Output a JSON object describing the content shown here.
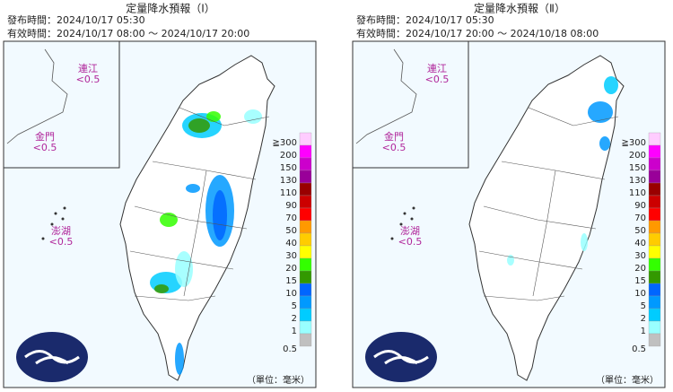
{
  "panels": [
    {
      "title": "定量降水預報（Ⅰ）",
      "issued": "發布時間：2024/10/17 05:30",
      "valid": "有效時間：2024/10/17 08:00 ～ 2024/10/17 20:00",
      "regions": [
        {
          "name": "連江",
          "value": "<0.5"
        },
        {
          "name": "金門",
          "value": "<0.5"
        },
        {
          "name": "澎湖",
          "value": "<0.5"
        }
      ]
    },
    {
      "title": "定量降水預報（Ⅱ）",
      "issued": "發布時間：2024/10/17 05:30",
      "valid": "有效時間：2024/10/17 20:00 ～ 2024/10/18 08:00",
      "regions": [
        {
          "name": "連江",
          "value": "<0.5"
        },
        {
          "name": "金門",
          "value": "<0.5"
        },
        {
          "name": "澎湖",
          "value": "<0.5"
        }
      ]
    }
  ],
  "legend": {
    "labels": [
      "≧300",
      "200",
      "150",
      "130",
      "110",
      "90",
      "70",
      "50",
      "40",
      "30",
      "20",
      "15",
      "10",
      "5",
      "2",
      "1",
      "0.5"
    ],
    "colors": [
      "#ffccff",
      "#ff00ff",
      "#cc00cc",
      "#990099",
      "#990000",
      "#cc0000",
      "#ff0000",
      "#ff9900",
      "#ffcc00",
      "#ffff00",
      "#33ff00",
      "#339900",
      "#0066ff",
      "#0099ff",
      "#00ccff",
      "#99ffff",
      "#c0c0c0"
    ],
    "unit": "（單位：毫米）"
  }
}
